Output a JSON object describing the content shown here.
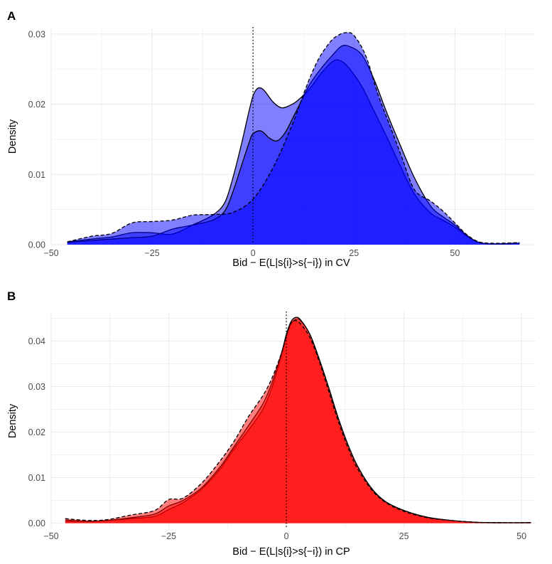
{
  "chart_data": [
    {
      "type": "area",
      "panel_label": "A",
      "xlabel": "Bid − E(L|s{i}>s{−i}) in CV",
      "ylabel": "Density",
      "xlim": [
        -50,
        70
      ],
      "ylim": [
        0,
        0.031
      ],
      "xticks": [
        -50,
        -25,
        0,
        25,
        50
      ],
      "xtick_labels": [
        "−50",
        "−25",
        "0",
        "25",
        "50"
      ],
      "yticks": [
        0,
        0.01,
        0.02,
        0.03
      ],
      "ytick_labels": [
        "0.00",
        "0.01",
        "0.02",
        "0.03"
      ],
      "vline_x": 0,
      "grid": true,
      "fill_color": "#0000ff",
      "series": [
        {
          "line_style": "solid",
          "fill_opacity": 0.5,
          "x": [
            -46,
            -40,
            -35,
            -30,
            -25,
            -20,
            -15,
            -10,
            -7,
            -5,
            -3,
            -1,
            0,
            1,
            2,
            3,
            5,
            7,
            9,
            11,
            14,
            17,
            20,
            22,
            24,
            27,
            30,
            33,
            36,
            40,
            44,
            47,
            50,
            53,
            56,
            60,
            66
          ],
          "y": [
            0.0004,
            0.0008,
            0.0011,
            0.0017,
            0.0017,
            0.0015,
            0.0028,
            0.0042,
            0.006,
            0.0095,
            0.014,
            0.019,
            0.0212,
            0.0222,
            0.0223,
            0.0218,
            0.0203,
            0.0195,
            0.0198,
            0.0205,
            0.0222,
            0.0245,
            0.0262,
            0.0261,
            0.025,
            0.0225,
            0.019,
            0.0155,
            0.0118,
            0.0072,
            0.0045,
            0.0035,
            0.0025,
            0.0012,
            0.0003,
            0.0001,
            0.0002
          ]
        },
        {
          "line_style": "solid",
          "fill_opacity": 0.5,
          "x": [
            -46,
            -40,
            -35,
            -30,
            -25,
            -20,
            -15,
            -10,
            -7,
            -5,
            -3,
            -1,
            0,
            2,
            4,
            6,
            8,
            10,
            12,
            14,
            17,
            20,
            22,
            24,
            27,
            30,
            33,
            36,
            40,
            44,
            47,
            50,
            53,
            56,
            60,
            66
          ],
          "y": [
            0.0003,
            0.0006,
            0.0008,
            0.001,
            0.0012,
            0.0022,
            0.0028,
            0.0035,
            0.0048,
            0.0075,
            0.011,
            0.0145,
            0.0158,
            0.0162,
            0.0152,
            0.0148,
            0.016,
            0.0182,
            0.0205,
            0.0228,
            0.0252,
            0.0272,
            0.0283,
            0.0282,
            0.027,
            0.0235,
            0.019,
            0.0148,
            0.0095,
            0.0055,
            0.004,
            0.0028,
            0.0013,
            0.0003,
            0.0001,
            0.0002
          ]
        },
        {
          "line_style": "dashed",
          "fill_opacity": 0.5,
          "x": [
            -46,
            -40,
            -35,
            -30,
            -25,
            -20,
            -15,
            -10,
            -5,
            0,
            5,
            10,
            13,
            16,
            19,
            21,
            23,
            25,
            28,
            31,
            34,
            37,
            40,
            44,
            47,
            50,
            53,
            56,
            60,
            66
          ],
          "y": [
            0.0004,
            0.0012,
            0.0016,
            0.0031,
            0.0033,
            0.0035,
            0.0042,
            0.0043,
            0.0046,
            0.0065,
            0.011,
            0.0175,
            0.0222,
            0.0262,
            0.0288,
            0.0298,
            0.0302,
            0.0298,
            0.0268,
            0.0213,
            0.0168,
            0.0122,
            0.0078,
            0.0062,
            0.0048,
            0.0031,
            0.0014,
            0.0004,
            0.0002,
            0.0003
          ]
        }
      ]
    },
    {
      "type": "area",
      "panel_label": "B",
      "xlabel": "Bid − E(L|s{i}>s{−i}) in CP",
      "ylabel": "Density",
      "xlim": [
        -50,
        53
      ],
      "ylim": [
        -0.001,
        0.0465
      ],
      "xticks": [
        -50,
        -25,
        0,
        25,
        50
      ],
      "xtick_labels": [
        "−50",
        "−25",
        "0",
        "25",
        "50"
      ],
      "yticks": [
        0,
        0.01,
        0.02,
        0.03,
        0.04
      ],
      "ytick_labels": [
        "0.00",
        "0.01",
        "0.02",
        "0.03",
        "0.04"
      ],
      "vline_x": 0,
      "grid": true,
      "fill_color": "#ff0000",
      "series": [
        {
          "line_style": "solid",
          "fill_opacity": 0.5,
          "x": [
            -47,
            -42,
            -38,
            -33,
            -28,
            -25,
            -22,
            -18,
            -14,
            -11,
            -8,
            -5,
            -3,
            -1,
            0,
            1,
            2,
            3,
            5,
            7,
            9,
            11,
            13,
            15,
            18,
            21,
            25,
            30,
            35,
            40,
            45,
            52
          ],
          "y": [
            0.0004,
            0.0004,
            0.0006,
            0.001,
            0.0015,
            0.003,
            0.0045,
            0.0075,
            0.012,
            0.0165,
            0.0205,
            0.025,
            0.03,
            0.037,
            0.041,
            0.0438,
            0.0448,
            0.0445,
            0.0415,
            0.036,
            0.0298,
            0.0232,
            0.0175,
            0.0128,
            0.0078,
            0.0048,
            0.0028,
            0.0013,
            0.0006,
            0.0002,
            0.0001,
            0.0001
          ]
        },
        {
          "line_style": "solid",
          "fill_opacity": 0.5,
          "x": [
            -47,
            -42,
            -38,
            -33,
            -28,
            -25,
            -22,
            -18,
            -14,
            -11,
            -8,
            -5,
            -3,
            -1,
            0,
            1,
            2,
            3,
            5,
            7,
            9,
            11,
            13,
            15,
            18,
            21,
            25,
            30,
            35,
            40,
            45,
            52
          ],
          "y": [
            0.0007,
            0.0004,
            0.0006,
            0.0012,
            0.002,
            0.0038,
            0.005,
            0.0078,
            0.0125,
            0.017,
            0.0215,
            0.0262,
            0.031,
            0.0375,
            0.0415,
            0.0443,
            0.0452,
            0.0447,
            0.0415,
            0.036,
            0.0298,
            0.0232,
            0.0175,
            0.0128,
            0.0078,
            0.0048,
            0.0028,
            0.0013,
            0.0006,
            0.0002,
            0.0001,
            0.0001
          ]
        },
        {
          "line_style": "dashed",
          "fill_opacity": 0.5,
          "x": [
            -47,
            -42,
            -38,
            -33,
            -28,
            -25,
            -22,
            -18,
            -14,
            -11,
            -8,
            -5,
            -3,
            -1,
            0,
            1,
            2,
            3,
            5,
            7,
            9,
            11,
            13,
            15,
            18,
            21,
            25,
            30,
            35,
            40,
            45,
            52
          ],
          "y": [
            0.001,
            0.0006,
            0.0008,
            0.0018,
            0.0028,
            0.0052,
            0.0055,
            0.0088,
            0.0138,
            0.0182,
            0.0235,
            0.028,
            0.032,
            0.0375,
            0.0412,
            0.044,
            0.0445,
            0.0438,
            0.0408,
            0.0355,
            0.029,
            0.0225,
            0.0168,
            0.0122,
            0.0075,
            0.0046,
            0.0026,
            0.0012,
            0.0006,
            0.0002,
            0.0001,
            0.0001
          ]
        }
      ]
    }
  ]
}
